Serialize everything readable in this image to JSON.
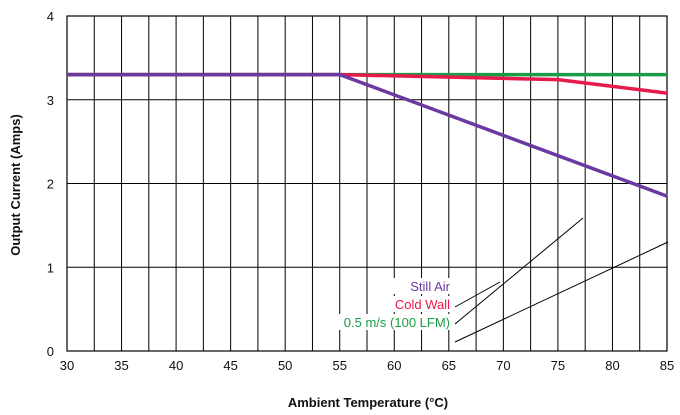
{
  "chart_data": {
    "type": "line",
    "title": "",
    "xlabel": "Ambient Temperature (°C)",
    "ylabel": "Output Current (Amps)",
    "xlim": [
      30,
      85
    ],
    "ylim": [
      0,
      4
    ],
    "x_ticks": [
      "30",
      "35",
      "40",
      "45",
      "50",
      "55",
      "60",
      "65",
      "70",
      "75",
      "80",
      "85"
    ],
    "y_ticks": [
      "0",
      "1",
      "2",
      "3",
      "4"
    ],
    "grid": true,
    "x_minor_step": 2.5,
    "series": [
      {
        "name": "0.5 m/s (100 LFM)",
        "color": "#1a9c49",
        "points": [
          [
            30,
            3.3
          ],
          [
            85,
            3.3
          ]
        ]
      },
      {
        "name": "Cold Wall",
        "color": "#e8194b",
        "points": [
          [
            30,
            3.3
          ],
          [
            55,
            3.3
          ],
          [
            75,
            3.24
          ],
          [
            85,
            3.08
          ]
        ]
      },
      {
        "name": "Still Air",
        "color": "#6b3aa0",
        "points": [
          [
            30,
            3.3
          ],
          [
            55,
            3.3
          ],
          [
            85,
            1.85
          ]
        ]
      }
    ],
    "annotations": [
      {
        "text": "Still Air",
        "color": "#6b3aa0"
      },
      {
        "text": "Cold Wall",
        "color": "#e8194b"
      },
      {
        "text": "0.5 m/s (100 LFM)",
        "color": "#1a9c49"
      }
    ]
  }
}
